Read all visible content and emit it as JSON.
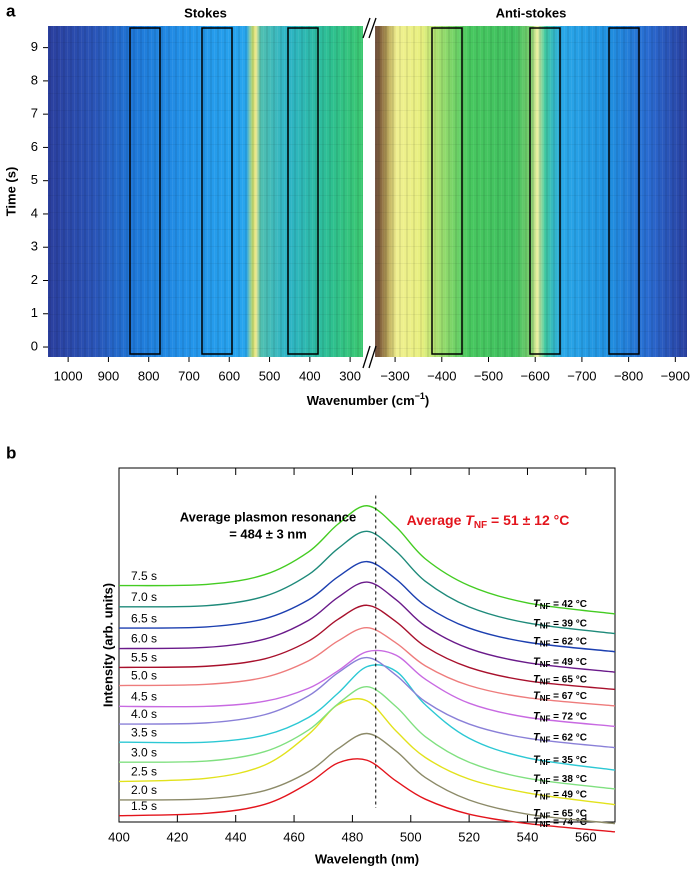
{
  "panel_labels": [
    "a",
    "b"
  ],
  "chart_data": [
    {
      "type": "heatmap",
      "title": "Stokes",
      "ylabel": "Time (s)",
      "ylim": [
        -0.3,
        9.65
      ],
      "yticks": [
        0,
        1,
        2,
        3,
        4,
        5,
        6,
        7,
        8,
        9
      ],
      "xlim": [
        1050,
        268
      ],
      "xticks": [
        1000,
        900,
        800,
        700,
        600,
        500,
        400,
        300
      ],
      "xlabel": [
        "Wavenumber (cm",
        "−1",
        ")"
      ]
    },
    {
      "type": "heatmap",
      "title": "Anti-stokes",
      "xlim": [
        -257,
        -925
      ],
      "xticks": [
        {
          "value": -300,
          "label": "−300"
        },
        {
          "value": -400,
          "label": "−400"
        },
        {
          "value": -500,
          "label": "−500"
        },
        {
          "value": -600,
          "label": "−600"
        },
        {
          "value": -700,
          "label": "−700"
        },
        {
          "value": -800,
          "label": "−800"
        },
        {
          "value": -900,
          "label": "−900"
        }
      ]
    },
    {
      "type": "line",
      "xlabel": "Wavelength (nm)",
      "ylabel": "Intensity (arb. units)",
      "x": [
        400,
        430,
        450,
        465,
        475,
        485,
        495,
        505,
        520,
        540,
        570
      ],
      "xlim": [
        400,
        570
      ],
      "xticks": [
        400,
        420,
        440,
        460,
        480,
        500,
        520,
        540,
        560
      ],
      "ylim": [
        5,
        95
      ],
      "reference_line": 488,
      "annotation_left": [
        "Average plasmon resonance",
        "= 484 ± 3 nm"
      ],
      "annotation_right": [
        "Average ",
        "T",
        "NF",
        " = 51 ± 12 °C"
      ],
      "temperature_symbol": [
        "T",
        "NF"
      ],
      "series": [
        {
          "name": "1.5 s",
          "color": "#e3141c",
          "temperature": " = 74 °C",
          "values": [
            6.6,
            7.2,
            9.5,
            14.9,
            20.0,
            20.7,
            15.4,
            10.8,
            7.0,
            4.6,
            2.5
          ]
        },
        {
          "name": "2.0 s",
          "color": "#8c8a68",
          "temperature": " = 65 °C",
          "values": [
            10.6,
            10.9,
            13.0,
            17.8,
            23.6,
            27.5,
            23.0,
            16.3,
            10.6,
            7.0,
            4.6
          ]
        },
        {
          "name": "2.5 s",
          "color": "#e2e21c",
          "temperature": " = 49 °C",
          "values": [
            15.3,
            16.1,
            19.5,
            27.3,
            34.8,
            35.8,
            28.1,
            21.4,
            15.9,
            12.4,
            9.4
          ]
        },
        {
          "name": "3.0 s",
          "color": "#80e080",
          "temperature": " = 38 °C",
          "values": [
            20.2,
            20.5,
            22.9,
            28.4,
            35.0,
            39.4,
            34.3,
            26.7,
            20.2,
            16.1,
            13.4
          ]
        },
        {
          "name": "3.5 s",
          "color": "#2cc8d4",
          "temperature": " = 35 °C",
          "values": [
            25.3,
            25.3,
            27.1,
            31.6,
            37.7,
            44.5,
            43.3,
            34.8,
            26.3,
            21.3,
            18.2
          ]
        },
        {
          "name": "4.0 s",
          "color": "#8a80d8",
          "temperature": " = 62 °C",
          "values": [
            29.9,
            30.2,
            32.3,
            37.1,
            42.9,
            46.8,
            42.3,
            35.6,
            29.9,
            26.3,
            23.9
          ]
        },
        {
          "name": "4.5 s",
          "color": "#c86ae2",
          "temperature": " = 72 °C",
          "values": [
            34.4,
            34.4,
            35.7,
            39.0,
            43.4,
            48.3,
            47.4,
            41.3,
            35.2,
            31.6,
            29.3
          ]
        },
        {
          "name": "5.0 s",
          "color": "#ee7c7c",
          "temperature": " = 67 °C",
          "values": [
            39.7,
            40.0,
            41.8,
            46.0,
            51.0,
            54.4,
            50.5,
            44.7,
            39.7,
            36.6,
            34.5
          ]
        },
        {
          "name": "5.5 s",
          "color": "#a8102c",
          "temperature": " = 65 °C",
          "values": [
            44.3,
            44.6,
            46.5,
            51.0,
            56.5,
            60.1,
            55.9,
            49.6,
            44.3,
            40.9,
            38.7
          ]
        },
        {
          "name": "6.0 s",
          "color": "#6a1a8a",
          "temperature": " = 49 °C",
          "values": [
            49.1,
            49.4,
            51.5,
            56.3,
            62.1,
            66.0,
            61.5,
            54.8,
            49.1,
            45.5,
            43.1
          ]
        },
        {
          "name": "6.5 s",
          "color": "#1c3fb0",
          "temperature": " = 62 °C",
          "values": [
            54.3,
            54.6,
            56.7,
            61.5,
            67.3,
            71.2,
            66.7,
            60.0,
            54.3,
            50.7,
            48.3
          ]
        },
        {
          "name": "7.0 s",
          "color": "#1e8a7a",
          "temperature": " = 39 °C",
          "values": [
            59.7,
            60.0,
            62.4,
            67.9,
            74.5,
            78.9,
            73.8,
            66.2,
            59.7,
            55.6,
            52.9
          ]
        },
        {
          "name": "7.5 s",
          "color": "#44cc22",
          "temperature": " = 42 °C",
          "values": [
            65.1,
            65.4,
            67.9,
            73.7,
            80.7,
            85.4,
            80.0,
            71.9,
            65.1,
            60.7,
            57.9
          ]
        }
      ]
    }
  ]
}
